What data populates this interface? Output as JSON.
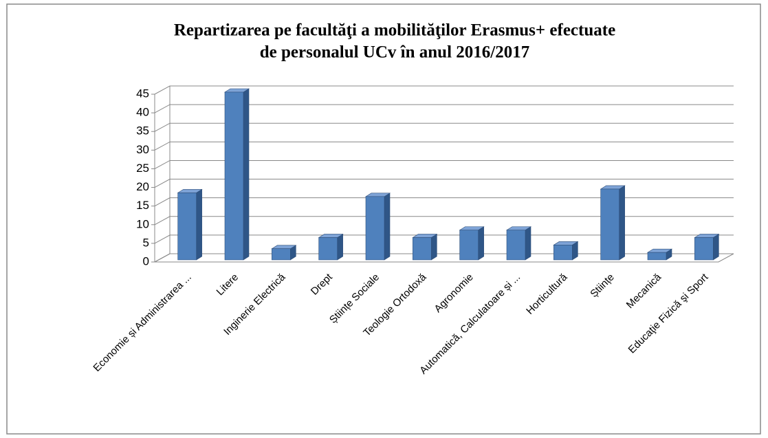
{
  "chart_data": {
    "type": "bar3d",
    "title": [
      "Repartizarea pe facultăţi a mobilităţilor Erasmus+ efectuate",
      "de personalul UCv în anul  2016/2017"
    ],
    "categories": [
      "Economie și Administrarea ...",
      "Litere",
      "Inginerie Electrică",
      "Drept",
      "Științe Sociale",
      "Teologie Ortodoxă",
      "Agronomie",
      "Automatică, Calculatoare și ...",
      "Horticultură",
      "Științe",
      "Mecanică",
      "Educaţie Fizică şi Sport"
    ],
    "values": [
      18,
      45,
      3,
      6,
      17,
      6,
      8,
      8,
      4,
      19,
      2,
      6
    ],
    "color": "#4f81bd",
    "ylim": [
      0,
      45
    ],
    "yticks": [
      0,
      5,
      10,
      15,
      20,
      25,
      30,
      35,
      40,
      45
    ],
    "grid": true
  }
}
